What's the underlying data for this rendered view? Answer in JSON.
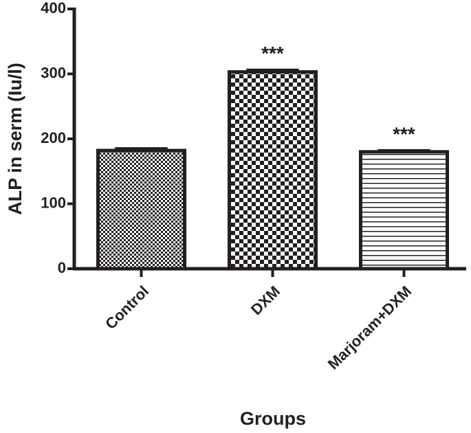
{
  "chart_data": {
    "type": "bar",
    "x_label": "Groups",
    "y_label": "ALP in serm (Iu/l)",
    "categories": [
      "Control",
      "DXM",
      "Marjoram+DXM"
    ],
    "values": [
      182,
      303,
      180
    ],
    "errors": [
      3,
      3,
      2
    ],
    "patterns": [
      "fine-checker",
      "checker",
      "horizontal-lines"
    ],
    "annotations": [
      {
        "category": "DXM",
        "label": "***"
      },
      {
        "category": "Marjoram+DXM",
        "label": "***"
      }
    ],
    "color": "#231f20",
    "ylim": [
      0,
      400
    ],
    "yticks": [
      0,
      100,
      200,
      300,
      400
    ],
    "grid": false
  }
}
